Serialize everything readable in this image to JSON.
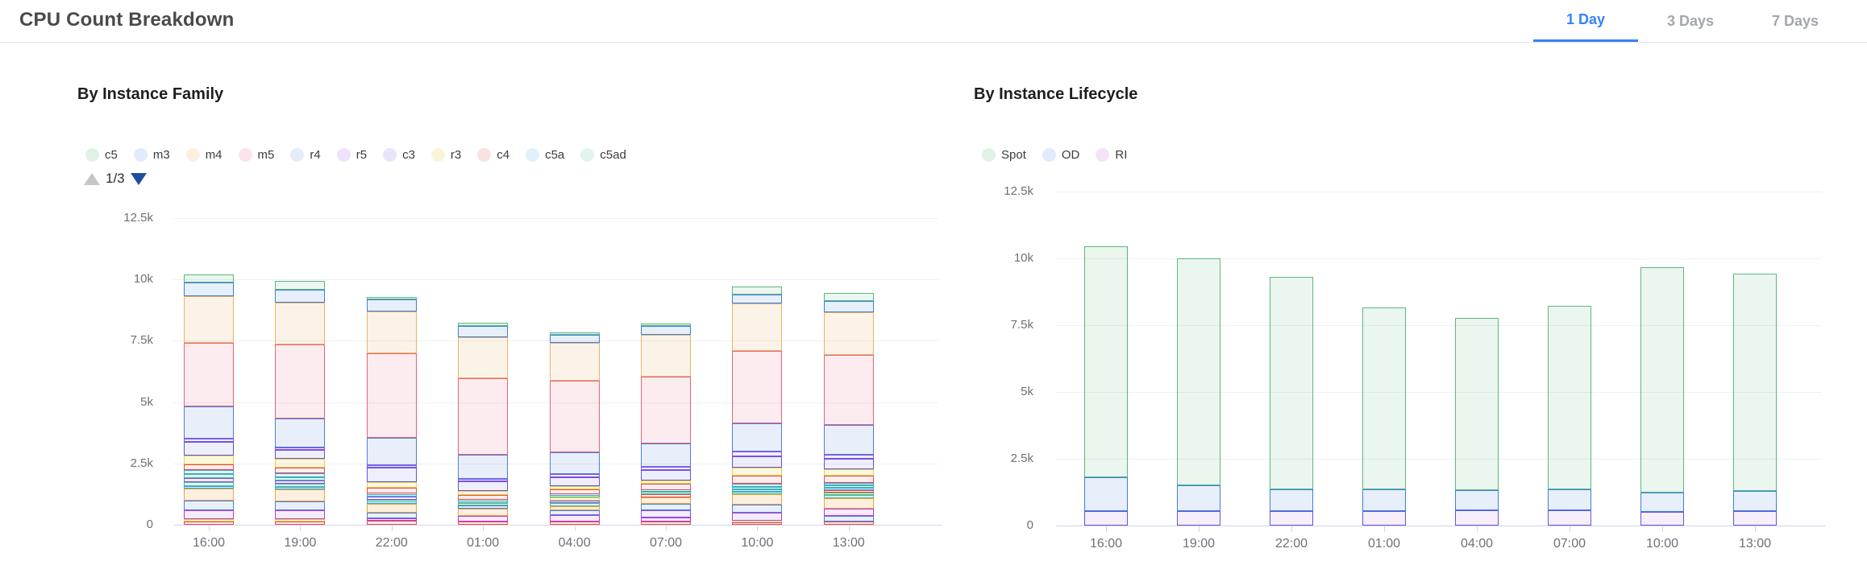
{
  "header": {
    "title": "CPU Count Breakdown",
    "tabs": [
      {
        "label": "1 Day",
        "active": true
      },
      {
        "label": "3 Days",
        "active": false
      },
      {
        "label": "7 Days",
        "active": false
      }
    ],
    "active_tab_color": "#3582f7"
  },
  "palette": {
    "green": {
      "border": "#5cb87f",
      "fill": "rgba(92,184,127,0.13)"
    },
    "blue": {
      "border": "#3d7fe0",
      "fill": "rgba(61,127,224,0.12)"
    },
    "orange": {
      "border": "#e7b468",
      "fill": "rgba(231,180,104,0.16)"
    },
    "rose": {
      "border": "#e8637c",
      "fill": "rgba(232,99,124,0.12)"
    },
    "steel": {
      "border": "#4c7fd9",
      "fill": "rgba(76,127,217,0.12)"
    },
    "violet": {
      "border": "#8a4fe8",
      "fill": "rgba(138,79,232,0.10)"
    },
    "indigo": {
      "border": "#5f55e2",
      "fill": "rgba(95,85,226,0.10)"
    },
    "yellow": {
      "border": "#e3cf43",
      "fill": "rgba(227,207,67,0.16)"
    },
    "red": {
      "border": "#e84c4c",
      "fill": "rgba(232,76,76,0.10)"
    },
    "sky": {
      "border": "#38a1d9",
      "fill": "rgba(56,161,217,0.12)"
    },
    "teal": {
      "border": "#3dbd9e",
      "fill": "rgba(61,189,158,0.12)"
    },
    "magenta": {
      "border": "#b43bd6",
      "fill": "rgba(180,59,214,0.10)"
    },
    "gold": {
      "border": "#e8a33c",
      "fill": "rgba(232,163,60,0.16)"
    },
    "ri": {
      "border": "#6456e0",
      "fill": "rgba(164,88,220,0.10)"
    }
  },
  "chart_data": [
    {
      "id": "family",
      "type": "stacked-bar",
      "title": "By Instance Family",
      "legend_position": "top",
      "grid": true,
      "ylim": [
        0,
        12500
      ],
      "y_ticks": [
        {
          "label": "12.5k",
          "value": 12500
        },
        {
          "label": "10k",
          "value": 10000
        },
        {
          "label": "7.5k",
          "value": 7500
        },
        {
          "label": "5k",
          "value": 5000
        },
        {
          "label": "2.5k",
          "value": 2500
        },
        {
          "label": "0",
          "value": 0
        }
      ],
      "categories": [
        "16:00",
        "19:00",
        "22:00",
        "01:00",
        "04:00",
        "07:00",
        "10:00",
        "13:00"
      ],
      "pagination": {
        "text": "1/3",
        "up_enabled": false,
        "down_enabled": true
      },
      "legend": [
        {
          "name": "c5",
          "color": "green",
          "swatch": "#e1f1e8"
        },
        {
          "name": "m3",
          "color": "blue",
          "swatch": "#e2ebfc"
        },
        {
          "name": "m4",
          "color": "orange",
          "swatch": "#fdf1de"
        },
        {
          "name": "m5",
          "color": "rose",
          "swatch": "#fbe4eb"
        },
        {
          "name": "r4",
          "color": "steel",
          "swatch": "#e4ebfa"
        },
        {
          "name": "r5",
          "color": "violet",
          "swatch": "#f0e2fc"
        },
        {
          "name": "c3",
          "color": "indigo",
          "swatch": "#e8e5fb"
        },
        {
          "name": "r3",
          "color": "yellow",
          "swatch": "#faf5da"
        },
        {
          "name": "c4",
          "color": "red",
          "swatch": "#fbe2e2"
        },
        {
          "name": "c5a",
          "color": "sky",
          "swatch": "#e0f1fa"
        },
        {
          "name": "c5ad",
          "color": "teal",
          "swatch": "#e0f5ee"
        }
      ],
      "series": [
        {
          "name": "c5",
          "color": "green",
          "values": [
            330,
            360,
            100,
            130,
            100,
            100,
            330,
            330
          ]
        },
        {
          "name": "m3",
          "color": "blue",
          "values": [
            560,
            530,
            490,
            460,
            320,
            350,
            360,
            450
          ]
        },
        {
          "name": "m4",
          "color": "orange",
          "values": [
            1900,
            1700,
            1710,
            1680,
            1550,
            1700,
            1940,
            1750
          ]
        },
        {
          "name": "m5",
          "color": "rose",
          "values": [
            2600,
            3000,
            3450,
            3100,
            2900,
            2750,
            2960,
            2850
          ]
        },
        {
          "name": "r4",
          "color": "steel",
          "values": [
            1300,
            1200,
            1090,
            990,
            900,
            950,
            1150,
            1200
          ]
        },
        {
          "name": "r5",
          "color": "violet",
          "values": [
            130,
            100,
            100,
            100,
            120,
            120,
            200,
            180
          ]
        },
        {
          "name": "c3",
          "color": "indigo",
          "values": [
            560,
            360,
            590,
            390,
            360,
            420,
            460,
            400
          ]
        },
        {
          "name": "r3",
          "color": "yellow",
          "values": [
            350,
            340,
            230,
            160,
            140,
            150,
            330,
            280
          ]
        },
        {
          "name": "c4",
          "color": "red",
          "values": [
            250,
            240,
            230,
            200,
            180,
            250,
            310,
            280
          ]
        },
        {
          "name": "c5a",
          "color": "sky",
          "values": [
            160,
            150,
            70,
            60,
            80,
            80,
            130,
            120
          ]
        },
        {
          "name": "c5ad",
          "color": "teal",
          "values": [
            160,
            150,
            70,
            60,
            80,
            80,
            100,
            100
          ]
        }
      ],
      "extra_segments_note": "unlabeled lower stack segments from legend pages 2-3, bottom-up",
      "extra_segments": [
        [
          {
            "c": "red",
            "v": 130
          },
          {
            "c": "yellow",
            "v": 100
          },
          {
            "c": "magenta",
            "v": 360
          },
          {
            "c": "steel",
            "v": 390
          },
          {
            "c": "gold",
            "v": 490
          },
          {
            "c": "sky",
            "v": 100
          },
          {
            "c": "teal",
            "v": 165
          },
          {
            "c": "violet",
            "v": 165
          }
        ],
        [
          {
            "c": "red",
            "v": 130
          },
          {
            "c": "yellow",
            "v": 100
          },
          {
            "c": "magenta",
            "v": 350
          },
          {
            "c": "steel",
            "v": 380
          },
          {
            "c": "gold",
            "v": 470
          },
          {
            "c": "sky",
            "v": 100
          },
          {
            "c": "teal",
            "v": 150
          },
          {
            "c": "violet",
            "v": 120
          }
        ],
        [
          {
            "c": "red",
            "v": 160
          },
          {
            "c": "magenta",
            "v": 100
          },
          {
            "c": "steel",
            "v": 230
          },
          {
            "c": "gold",
            "v": 360
          },
          {
            "c": "sky",
            "v": 80
          },
          {
            "c": "teal",
            "v": 80
          },
          {
            "c": "violet",
            "v": 140
          }
        ],
        [
          {
            "c": "red",
            "v": 120
          },
          {
            "c": "magenta",
            "v": 230
          },
          {
            "c": "gold",
            "v": 300
          },
          {
            "c": "blue",
            "v": 150
          },
          {
            "c": "green",
            "v": 100
          }
        ],
        [
          {
            "c": "red",
            "v": 120
          },
          {
            "c": "magenta",
            "v": 280
          },
          {
            "c": "steel",
            "v": 200
          },
          {
            "c": "gold",
            "v": 150
          },
          {
            "c": "teal",
            "v": 150
          },
          {
            "c": "violet",
            "v": 100
          },
          {
            "c": "yellow",
            "v": 100
          }
        ],
        [
          {
            "c": "red",
            "v": 140
          },
          {
            "c": "magenta",
            "v": 160
          },
          {
            "c": "violet",
            "v": 300
          },
          {
            "c": "steel",
            "v": 250
          },
          {
            "c": "gold",
            "v": 250
          },
          {
            "c": "red",
            "v": 150
          }
        ],
        [
          {
            "c": "red",
            "v": 100
          },
          {
            "c": "yellow",
            "v": 80
          },
          {
            "c": "magenta",
            "v": 310
          },
          {
            "c": "steel",
            "v": 330
          },
          {
            "c": "gold",
            "v": 420
          },
          {
            "c": "teal",
            "v": 120
          },
          {
            "c": "sky",
            "v": 90
          }
        ],
        [
          {
            "c": "red",
            "v": 120
          },
          {
            "c": "steel",
            "v": 250
          },
          {
            "c": "magenta",
            "v": 300
          },
          {
            "c": "gold",
            "v": 400
          },
          {
            "c": "teal",
            "v": 130
          },
          {
            "c": "green",
            "v": 100
          },
          {
            "c": "red",
            "v": 100
          },
          {
            "c": "sky",
            "v": 100
          }
        ]
      ]
    },
    {
      "id": "lifecycle",
      "type": "stacked-bar",
      "title": "By Instance Lifecycle",
      "legend_position": "top",
      "grid": true,
      "ylim": [
        0,
        12500
      ],
      "y_ticks": [
        {
          "label": "12.5k",
          "value": 12500
        },
        {
          "label": "10k",
          "value": 10000
        },
        {
          "label": "7.5k",
          "value": 7500
        },
        {
          "label": "5k",
          "value": 5000
        },
        {
          "label": "2.5k",
          "value": 2500
        },
        {
          "label": "0",
          "value": 0
        }
      ],
      "categories": [
        "16:00",
        "19:00",
        "22:00",
        "01:00",
        "04:00",
        "07:00",
        "10:00",
        "13:00"
      ],
      "legend": [
        {
          "name": "Spot",
          "color": "green",
          "swatch": "#e1f1e8"
        },
        {
          "name": "OD",
          "color": "blue",
          "swatch": "#e2ebfc"
        },
        {
          "name": "RI",
          "color": "ri",
          "swatch": "#f4e3f8"
        }
      ],
      "series": [
        {
          "name": "Spot",
          "color": "green",
          "values": [
            8650,
            8500,
            7950,
            6800,
            6450,
            6880,
            8410,
            8140
          ]
        },
        {
          "name": "OD",
          "color": "blue",
          "values": [
            1250,
            950,
            800,
            800,
            760,
            780,
            730,
            750
          ]
        },
        {
          "name": "RI",
          "color": "ri",
          "values": [
            550,
            550,
            550,
            550,
            570,
            570,
            520,
            550
          ]
        }
      ],
      "extra_segments": [
        [],
        [],
        [],
        [],
        [],
        [],
        [],
        []
      ]
    }
  ]
}
